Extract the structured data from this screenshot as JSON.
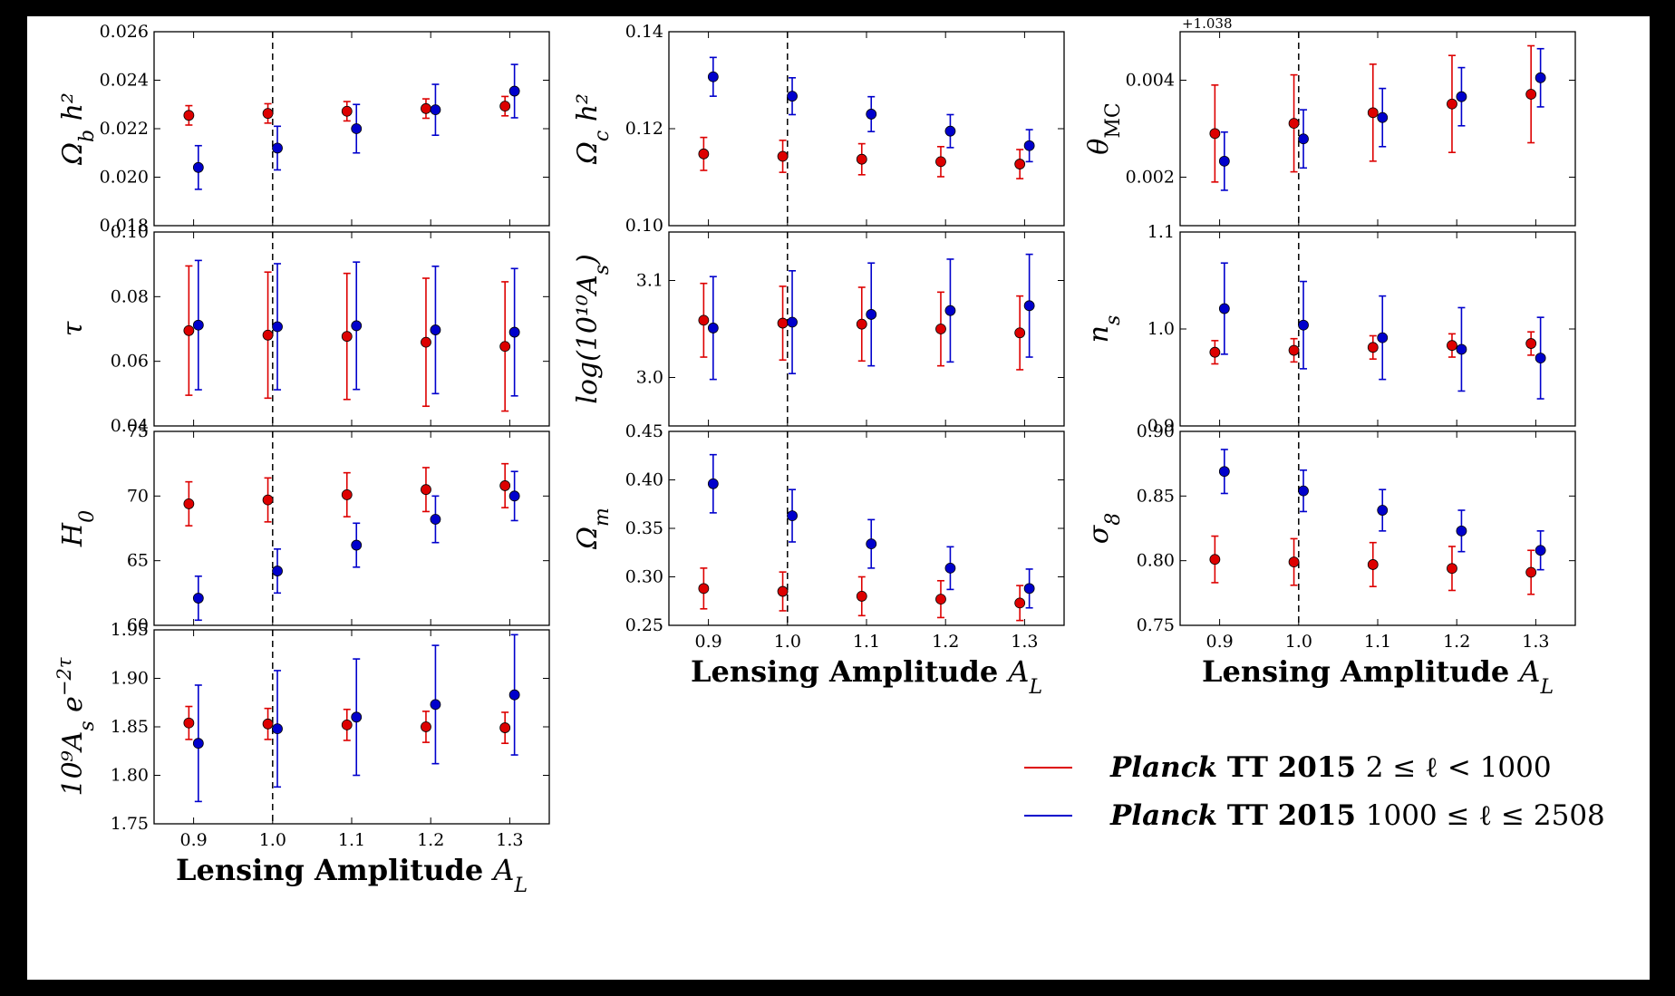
{
  "chart_data": [
    {
      "type": "scatter",
      "ylabel": "Ω_b h²",
      "ylim": [
        0.018,
        0.026
      ],
      "yticks": [
        "0.018",
        "0.020",
        "0.022",
        "0.024",
        "0.026"
      ],
      "xlim": [
        0.85,
        1.35
      ],
      "xticks": [
        "0.9",
        "1.0",
        "1.1",
        "1.2",
        "1.3"
      ],
      "xlabel": "",
      "show_xticklabels": false,
      "vline": 1.0,
      "offset": "",
      "series": [
        {
          "name": "Planck TT 2015 2 ≤ ℓ < 1000",
          "color": "#dd0000",
          "x": [
            0.9,
            1.0,
            1.1,
            1.2,
            1.3
          ],
          "y": [
            0.02255,
            0.02263,
            0.02272,
            0.02283,
            0.02293
          ],
          "err": [
            0.0004,
            0.0004,
            0.0004,
            0.0004,
            0.0004
          ]
        },
        {
          "name": "Planck TT 2015 1000 ≤ ℓ ≤ 2508",
          "color": "#0000cc",
          "x": [
            0.9,
            1.0,
            1.1,
            1.2,
            1.3
          ],
          "y": [
            0.0204,
            0.0212,
            0.022,
            0.02278,
            0.02355
          ],
          "err": [
            0.0009,
            0.0009,
            0.001,
            0.00105,
            0.0011
          ]
        }
      ]
    },
    {
      "type": "scatter",
      "ylabel": "Ω_c h²",
      "ylim": [
        0.1,
        0.14
      ],
      "yticks": [
        "0.10",
        "0.12",
        "0.14"
      ],
      "xlim": [
        0.85,
        1.35
      ],
      "xticks": [
        "0.9",
        "1.0",
        "1.1",
        "1.2",
        "1.3"
      ],
      "xlabel": "",
      "show_xticklabels": false,
      "vline": 1.0,
      "offset": "",
      "series": [
        {
          "name": "Planck TT 2015 2 ≤ ℓ < 1000",
          "color": "#dd0000",
          "x": [
            0.9,
            1.0,
            1.1,
            1.2,
            1.3
          ],
          "y": [
            0.1148,
            0.1143,
            0.1137,
            0.1132,
            0.1127
          ],
          "err": [
            0.0034,
            0.0033,
            0.0032,
            0.0031,
            0.003
          ]
        },
        {
          "name": "Planck TT 2015 1000 ≤ ℓ ≤ 2508",
          "color": "#0000cc",
          "x": [
            0.9,
            1.0,
            1.1,
            1.2,
            1.3
          ],
          "y": [
            0.1307,
            0.1267,
            0.123,
            0.1195,
            0.1165
          ],
          "err": [
            0.004,
            0.0038,
            0.0036,
            0.0034,
            0.0033
          ]
        }
      ]
    },
    {
      "type": "scatter",
      "ylabel": "θ_MC",
      "ylim": [
        0.001,
        0.005
      ],
      "yticks": [
        "0.002",
        "0.004"
      ],
      "ytickvals": [
        0.002,
        0.004
      ],
      "xlim": [
        0.85,
        1.35
      ],
      "xticks": [
        "0.9",
        "1.0",
        "1.1",
        "1.2",
        "1.3"
      ],
      "xlabel": "",
      "show_xticklabels": false,
      "vline": 1.0,
      "offset": "+1.038",
      "series": [
        {
          "name": "Planck TT 2015 2 ≤ ℓ < 1000",
          "color": "#dd0000",
          "x": [
            0.9,
            1.0,
            1.1,
            1.2,
            1.3
          ],
          "y": [
            0.0029,
            0.00311,
            0.00333,
            0.00351,
            0.00371
          ],
          "err": [
            0.001,
            0.001,
            0.001,
            0.001,
            0.001
          ]
        },
        {
          "name": "Planck TT 2015 1000 ≤ ℓ ≤ 2508",
          "color": "#0000cc",
          "x": [
            0.9,
            1.0,
            1.1,
            1.2,
            1.3
          ],
          "y": [
            0.00233,
            0.00279,
            0.00323,
            0.00366,
            0.00405
          ],
          "err": [
            0.0006,
            0.0006,
            0.0006,
            0.0006,
            0.0006
          ]
        }
      ]
    },
    {
      "type": "scatter",
      "ylabel": "τ",
      "ylim": [
        0.04,
        0.1
      ],
      "yticks": [
        "0.04",
        "0.06",
        "0.08",
        "0.10"
      ],
      "xlim": [
        0.85,
        1.35
      ],
      "xticks": [
        "0.9",
        "1.0",
        "1.1",
        "1.2",
        "1.3"
      ],
      "xlabel": "",
      "show_xticklabels": false,
      "vline": 1.0,
      "offset": "",
      "series": [
        {
          "name": "Planck TT 2015 2 ≤ ℓ < 1000",
          "color": "#dd0000",
          "x": [
            0.9,
            1.0,
            1.1,
            1.2,
            1.3
          ],
          "y": [
            0.0695,
            0.0681,
            0.0677,
            0.0659,
            0.0646
          ],
          "err": [
            0.02,
            0.0195,
            0.0195,
            0.0198,
            0.02
          ]
        },
        {
          "name": "Planck TT 2015 1000 ≤ ℓ ≤ 2508",
          "color": "#0000cc",
          "x": [
            0.9,
            1.0,
            1.1,
            1.2,
            1.3
          ],
          "y": [
            0.0712,
            0.0707,
            0.071,
            0.0697,
            0.069
          ],
          "err": [
            0.02,
            0.0195,
            0.0197,
            0.0197,
            0.0197
          ]
        }
      ]
    },
    {
      "type": "scatter",
      "ylabel": "log(10¹⁰A_s)",
      "ylim": [
        2.95,
        3.15
      ],
      "yticks": [
        "3.0",
        "3.1"
      ],
      "ytickvals": [
        3.0,
        3.1
      ],
      "xlim": [
        0.85,
        1.35
      ],
      "xticks": [
        "0.9",
        "1.0",
        "1.1",
        "1.2",
        "1.3"
      ],
      "xlabel": "",
      "show_xticklabels": false,
      "vline": 1.0,
      "offset": "",
      "series": [
        {
          "name": "Planck TT 2015 2 ≤ ℓ < 1000",
          "color": "#dd0000",
          "x": [
            0.9,
            1.0,
            1.1,
            1.2,
            1.3
          ],
          "y": [
            3.059,
            3.056,
            3.055,
            3.05,
            3.046
          ],
          "err": [
            0.038,
            0.038,
            0.038,
            0.038,
            0.038
          ]
        },
        {
          "name": "Planck TT 2015 1000 ≤ ℓ ≤ 2508",
          "color": "#0000cc",
          "x": [
            0.9,
            1.0,
            1.1,
            1.2,
            1.3
          ],
          "y": [
            3.051,
            3.057,
            3.065,
            3.069,
            3.074
          ],
          "err": [
            0.053,
            0.053,
            0.053,
            0.053,
            0.053
          ]
        }
      ]
    },
    {
      "type": "scatter",
      "ylabel": "n_s",
      "ylim": [
        0.9,
        1.1
      ],
      "yticks": [
        "0.9",
        "1.0",
        "1.1"
      ],
      "xlim": [
        0.85,
        1.35
      ],
      "xticks": [
        "0.9",
        "1.0",
        "1.1",
        "1.2",
        "1.3"
      ],
      "xlabel": "",
      "show_xticklabels": false,
      "vline": 1.0,
      "offset": "",
      "series": [
        {
          "name": "Planck TT 2015 2 ≤ ℓ < 1000",
          "color": "#dd0000",
          "x": [
            0.9,
            1.0,
            1.1,
            1.2,
            1.3
          ],
          "y": [
            0.976,
            0.978,
            0.981,
            0.983,
            0.985
          ],
          "err": [
            0.012,
            0.012,
            0.012,
            0.012,
            0.012
          ]
        },
        {
          "name": "Planck TT 2015 1000 ≤ ℓ ≤ 2508",
          "color": "#0000cc",
          "x": [
            0.9,
            1.0,
            1.1,
            1.2,
            1.3
          ],
          "y": [
            1.021,
            1.004,
            0.991,
            0.979,
            0.97
          ],
          "err": [
            0.047,
            0.045,
            0.043,
            0.043,
            0.042
          ]
        }
      ]
    },
    {
      "type": "scatter",
      "ylabel": "H_0",
      "ylim": [
        60,
        75
      ],
      "yticks": [
        "60",
        "65",
        "70",
        "75"
      ],
      "xlim": [
        0.85,
        1.35
      ],
      "xticks": [
        "0.9",
        "1.0",
        "1.1",
        "1.2",
        "1.3"
      ],
      "xlabel": "",
      "show_xticklabels": false,
      "vline": 1.0,
      "offset": "",
      "series": [
        {
          "name": "Planck TT 2015 2 ≤ ℓ < 1000",
          "color": "#dd0000",
          "x": [
            0.9,
            1.0,
            1.1,
            1.2,
            1.3
          ],
          "y": [
            69.4,
            69.7,
            70.1,
            70.5,
            70.8
          ],
          "err": [
            1.7,
            1.7,
            1.7,
            1.7,
            1.7
          ]
        },
        {
          "name": "Planck TT 2015 1000 ≤ ℓ ≤ 2508",
          "color": "#0000cc",
          "x": [
            0.9,
            1.0,
            1.1,
            1.2,
            1.3
          ],
          "y": [
            62.1,
            64.2,
            66.2,
            68.2,
            70.0
          ],
          "err": [
            1.7,
            1.7,
            1.7,
            1.8,
            1.9
          ]
        }
      ]
    },
    {
      "type": "scatter",
      "ylabel": "Ω_m",
      "ylim": [
        0.25,
        0.45
      ],
      "yticks": [
        "0.25",
        "0.30",
        "0.35",
        "0.40",
        "0.45"
      ],
      "xlim": [
        0.85,
        1.35
      ],
      "xticks": [
        "0.9",
        "1.0",
        "1.1",
        "1.2",
        "1.3"
      ],
      "xlabel": "Lensing Amplitude A_L",
      "show_xticklabels": true,
      "vline": 1.0,
      "offset": "",
      "series": [
        {
          "name": "Planck TT 2015 2 ≤ ℓ < 1000",
          "color": "#dd0000",
          "x": [
            0.9,
            1.0,
            1.1,
            1.2,
            1.3
          ],
          "y": [
            0.288,
            0.285,
            0.28,
            0.277,
            0.273
          ],
          "err": [
            0.021,
            0.02,
            0.02,
            0.019,
            0.018
          ]
        },
        {
          "name": "Planck TT 2015 1000 ≤ ℓ ≤ 2508",
          "color": "#0000cc",
          "x": [
            0.9,
            1.0,
            1.1,
            1.2,
            1.3
          ],
          "y": [
            0.396,
            0.363,
            0.334,
            0.309,
            0.288
          ],
          "err": [
            0.03,
            0.027,
            0.025,
            0.022,
            0.02
          ]
        }
      ]
    },
    {
      "type": "scatter",
      "ylabel": "σ_8",
      "ylim": [
        0.75,
        0.9
      ],
      "yticks": [
        "0.75",
        "0.80",
        "0.85",
        "0.90"
      ],
      "xlim": [
        0.85,
        1.35
      ],
      "xticks": [
        "0.9",
        "1.0",
        "1.1",
        "1.2",
        "1.3"
      ],
      "xlabel": "Lensing Amplitude A_L",
      "show_xticklabels": true,
      "vline": 1.0,
      "offset": "",
      "series": [
        {
          "name": "Planck TT 2015 2 ≤ ℓ < 1000",
          "color": "#dd0000",
          "x": [
            0.9,
            1.0,
            1.1,
            1.2,
            1.3
          ],
          "y": [
            0.801,
            0.799,
            0.797,
            0.794,
            0.791
          ],
          "err": [
            0.018,
            0.018,
            0.017,
            0.017,
            0.017
          ]
        },
        {
          "name": "Planck TT 2015 1000 ≤ ℓ ≤ 2508",
          "color": "#0000cc",
          "x": [
            0.9,
            1.0,
            1.1,
            1.2,
            1.3
          ],
          "y": [
            0.869,
            0.854,
            0.839,
            0.823,
            0.808
          ],
          "err": [
            0.017,
            0.016,
            0.016,
            0.016,
            0.015
          ]
        }
      ]
    },
    {
      "type": "scatter",
      "ylabel": "10⁹A_s e^(−2τ)",
      "ylim": [
        1.75,
        1.95
      ],
      "yticks": [
        "1.75",
        "1.80",
        "1.85",
        "1.90",
        "1.95"
      ],
      "xlim": [
        0.85,
        1.35
      ],
      "xticks": [
        "0.9",
        "1.0",
        "1.1",
        "1.2",
        "1.3"
      ],
      "xlabel": "Lensing Amplitude A_L",
      "show_xticklabels": true,
      "vline": 1.0,
      "offset": "",
      "series": [
        {
          "name": "Planck TT 2015 2 ≤ ℓ < 1000",
          "color": "#dd0000",
          "x": [
            0.9,
            1.0,
            1.1,
            1.2,
            1.3
          ],
          "y": [
            1.854,
            1.853,
            1.852,
            1.85,
            1.849
          ],
          "err": [
            0.017,
            0.016,
            0.016,
            0.016,
            0.016
          ]
        },
        {
          "name": "Planck TT 2015 1000 ≤ ℓ ≤ 2508",
          "color": "#0000cc",
          "x": [
            0.9,
            1.0,
            1.1,
            1.2,
            1.3
          ],
          "y": [
            1.833,
            1.848,
            1.86,
            1.873,
            1.883
          ],
          "err": [
            0.06,
            0.06,
            0.06,
            0.061,
            0.062
          ]
        }
      ]
    }
  ],
  "legend": {
    "position": "bottom-right",
    "entries": [
      {
        "color": "#dd0000",
        "italic": "Planck",
        "bold": "TT 2015",
        "math": "2 ≤ ℓ < 1000"
      },
      {
        "color": "#0000cc",
        "italic": "Planck",
        "bold": "TT 2015",
        "math": "1000 ≤ ℓ ≤ 2508"
      }
    ]
  }
}
